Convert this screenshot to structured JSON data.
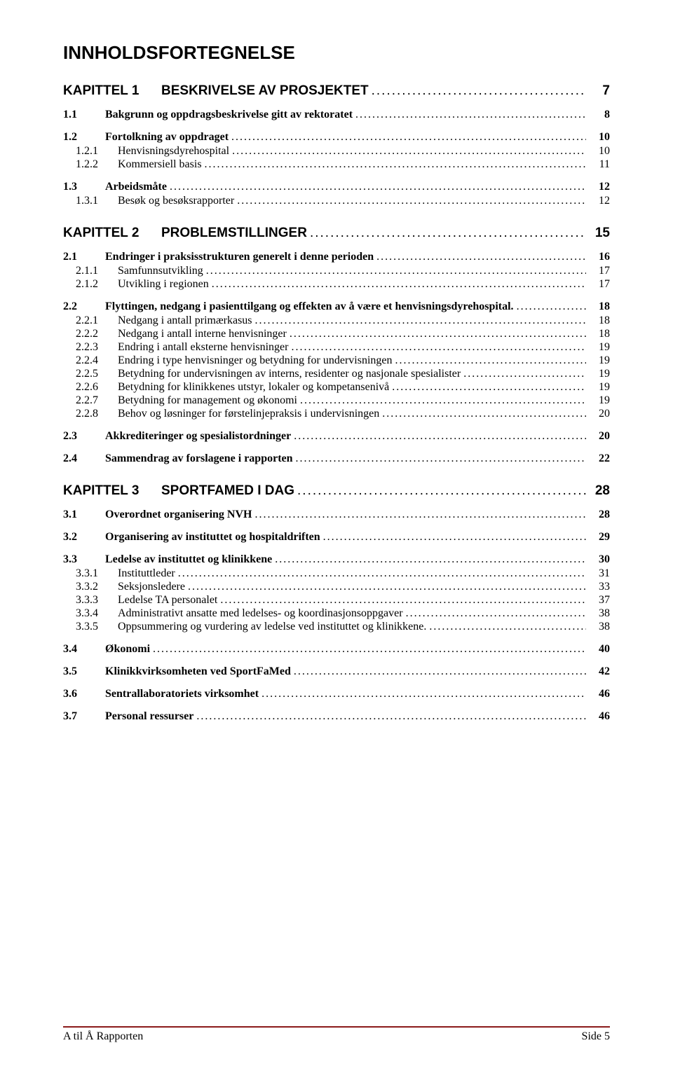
{
  "title": "INNHOLDSFORTEGNELSE",
  "footer": {
    "left": "A til Å Rapporten",
    "right": "Side 5"
  },
  "toc": [
    {
      "level": "chapter",
      "num": "KAPITTEL 1",
      "label": "BESKRIVELSE AV PROSJEKTET",
      "page": "7"
    },
    {
      "level": "section",
      "num": "1.1",
      "label": "Bakgrunn og oppdragsbeskrivelse gitt av rektoratet",
      "page": "8"
    },
    {
      "level": "section",
      "num": "1.2",
      "label": "Fortolkning av oppdraget",
      "page": "10"
    },
    {
      "level": "sub",
      "num": "1.2.1",
      "label": "Henvisningsdyrehospital",
      "page": "10"
    },
    {
      "level": "sub",
      "num": "1.2.2",
      "label": "Kommersiell basis",
      "page": "11"
    },
    {
      "level": "section",
      "num": "1.3",
      "label": "Arbeidsmåte",
      "page": "12"
    },
    {
      "level": "sub",
      "num": "1.3.1",
      "label": "Besøk og besøksrapporter",
      "page": "12"
    },
    {
      "level": "chapter",
      "num": "KAPITTEL 2",
      "label": "PROBLEMSTILLINGER",
      "page": "15"
    },
    {
      "level": "section",
      "num": "2.1",
      "label": "Endringer i praksisstrukturen generelt i denne perioden",
      "page": "16"
    },
    {
      "level": "sub",
      "num": "2.1.1",
      "label": "Samfunnsutvikling",
      "page": "17"
    },
    {
      "level": "sub",
      "num": "2.1.2",
      "label": "Utvikling i regionen",
      "page": "17"
    },
    {
      "level": "section",
      "num": "2.2",
      "label": "Flyttingen, nedgang i pasienttilgang og effekten av å være et henvisningsdyrehospital.",
      "page": "18"
    },
    {
      "level": "sub",
      "num": "2.2.1",
      "label": "Nedgang i antall primærkasus",
      "page": "18"
    },
    {
      "level": "sub",
      "num": "2.2.2",
      "label": "Nedgang i antall interne henvisninger",
      "page": "18"
    },
    {
      "level": "sub",
      "num": "2.2.3",
      "label": "Endring i antall eksterne henvisninger",
      "page": "19"
    },
    {
      "level": "sub",
      "num": "2.2.4",
      "label": "Endring i type henvisninger og betydning for undervisningen",
      "page": "19"
    },
    {
      "level": "sub",
      "num": "2.2.5",
      "label": "Betydning for undervisningen av interns, residenter og nasjonale spesialister",
      "page": "19"
    },
    {
      "level": "sub",
      "num": "2.2.6",
      "label": "Betydning for klinikkenes utstyr, lokaler og kompetansenivå",
      "page": "19"
    },
    {
      "level": "sub",
      "num": "2.2.7",
      "label": "Betydning for management og økonomi",
      "page": "19"
    },
    {
      "level": "sub",
      "num": "2.2.8",
      "label": "Behov og løsninger for førstelinjepraksis i undervisningen",
      "page": "20"
    },
    {
      "level": "section",
      "num": "2.3",
      "label": "Akkrediteringer og spesialistordninger",
      "page": "20"
    },
    {
      "level": "section",
      "num": "2.4",
      "label": "Sammendrag av forslagene i rapporten",
      "page": "22"
    },
    {
      "level": "chapter",
      "num": "KAPITTEL 3",
      "label": "SPORTFAMED I DAG",
      "page": "28"
    },
    {
      "level": "section",
      "num": "3.1",
      "label": "Overordnet organisering NVH",
      "page": "28"
    },
    {
      "level": "section",
      "num": "3.2",
      "label": "Organisering av instituttet og hospitaldriften",
      "page": "29"
    },
    {
      "level": "section",
      "num": "3.3",
      "label": "Ledelse av instituttet og klinikkene",
      "page": "30"
    },
    {
      "level": "sub",
      "num": "3.3.1",
      "label": "Instituttleder",
      "page": "31"
    },
    {
      "level": "sub",
      "num": "3.3.2",
      "label": "Seksjonsledere",
      "page": "33"
    },
    {
      "level": "sub",
      "num": "3.3.3",
      "label": "Ledelse TA personalet",
      "page": "37"
    },
    {
      "level": "sub",
      "num": "3.3.4",
      "label": "Administrativt ansatte med ledelses- og koordinasjonsoppgaver",
      "page": "38"
    },
    {
      "level": "sub",
      "num": "3.3.5",
      "label": "Oppsummering og vurdering av ledelse ved instituttet og klinikkene.",
      "page": "38"
    },
    {
      "level": "section",
      "num": "3.4",
      "label": "Økonomi",
      "page": "40"
    },
    {
      "level": "section",
      "num": "3.5",
      "label": "Klinikkvirksomheten ved SportFaMed",
      "page": "42"
    },
    {
      "level": "section",
      "num": "3.6",
      "label": "Sentrallaboratoriets virksomhet",
      "page": "46"
    },
    {
      "level": "section",
      "num": "3.7",
      "label": "Personal ressurser",
      "page": "46"
    }
  ]
}
